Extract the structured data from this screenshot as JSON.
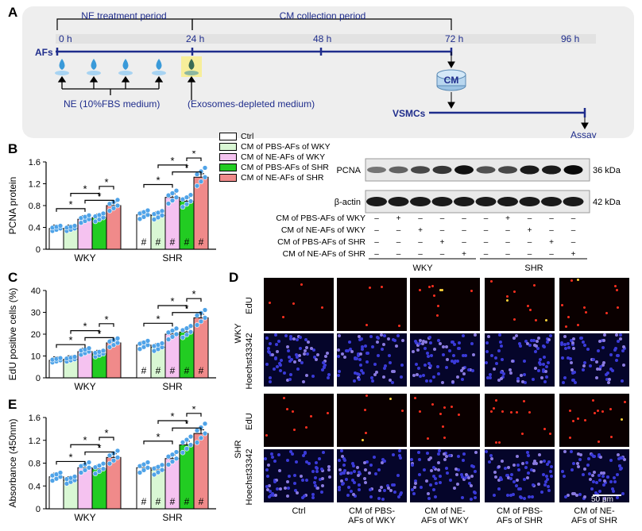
{
  "panel_letters": {
    "A": "A",
    "B": "B",
    "C": "C",
    "D": "D",
    "E": "E"
  },
  "panelA": {
    "period1": "NE treatment period",
    "period2": "CM collection period",
    "times": [
      "0 h",
      "24 h",
      "48 h",
      "72 h",
      "96 h"
    ],
    "afs": "AFs",
    "ne_medium": "NE (10%FBS medium)",
    "exo_medium": "(Exosomes-depleted medium)",
    "cm": "CM",
    "vsmcs": "VSMCs",
    "assay": "Assay",
    "colors": {
      "timeline": "#1f2d8c",
      "box": "#eeeeee"
    }
  },
  "legend": [
    {
      "label": "Ctrl",
      "color": "#ffffff"
    },
    {
      "label": "CM of PBS-AFs of WKY",
      "color": "#d9f7d4"
    },
    {
      "label": "CM of NE-AFs of WKY",
      "color": "#f5c2f0"
    },
    {
      "label": "CM of PBS-AFs of SHR",
      "color": "#22cc22"
    },
    {
      "label": "CM of NE-AFs of SHR",
      "color": "#f08a8a"
    }
  ],
  "significance_marks": {
    "star": "*",
    "hash": "#"
  },
  "chart_data": [
    {
      "type": "bar",
      "panel": "B",
      "ylabel": "PCNA protein",
      "ylim": [
        0,
        1.6
      ],
      "yticks": [
        "0",
        "0.4",
        "0.8",
        "1.2",
        "1.6"
      ],
      "groups": [
        "WKY",
        "SHR"
      ],
      "series": [
        {
          "name": "Ctrl",
          "values": [
            0.38,
            0.63
          ]
        },
        {
          "name": "CM of PBS-AFs of WKY",
          "values": [
            0.38,
            0.62
          ]
        },
        {
          "name": "CM of NE-AFs of WKY",
          "values": [
            0.55,
            0.95
          ]
        },
        {
          "name": "CM of PBS-AFs of SHR",
          "values": [
            0.58,
            0.88
          ]
        },
        {
          "name": "CM of NE-AFs of SHR",
          "values": [
            0.8,
            1.32
          ]
        }
      ]
    },
    {
      "type": "bar",
      "panel": "C",
      "ylabel": "EdU positive cells (%)",
      "ylim": [
        0,
        40
      ],
      "yticks": [
        "0",
        "10",
        "20",
        "30",
        "40"
      ],
      "groups": [
        "WKY",
        "SHR"
      ],
      "series": [
        {
          "name": "Ctrl",
          "values": [
            8,
            15
          ]
        },
        {
          "name": "CM of PBS-AFs of WKY",
          "values": [
            8.5,
            14
          ]
        },
        {
          "name": "CM of NE-AFs of WKY",
          "values": [
            12,
            20
          ]
        },
        {
          "name": "CM of PBS-AFs of SHR",
          "values": [
            11,
            21
          ]
        },
        {
          "name": "CM of NE-AFs of SHR",
          "values": [
            16,
            27.5
          ]
        }
      ]
    },
    {
      "type": "bar",
      "panel": "E",
      "ylabel": "Absorbance (450nm)",
      "ylim": [
        0,
        1.6
      ],
      "yticks": [
        "0",
        "0.4",
        "0.8",
        "1.2",
        "1.6"
      ],
      "groups": [
        "WKY",
        "SHR"
      ],
      "series": [
        {
          "name": "Ctrl",
          "values": [
            0.56,
            0.72
          ]
        },
        {
          "name": "CM of PBS-AFs of WKY",
          "values": [
            0.5,
            0.68
          ]
        },
        {
          "name": "CM of NE-AFs of WKY",
          "values": [
            0.72,
            0.88
          ]
        },
        {
          "name": "CM of PBS-AFs of SHR",
          "values": [
            0.7,
            1.12
          ]
        },
        {
          "name": "CM of NE-AFs of SHR",
          "values": [
            0.9,
            1.32
          ]
        }
      ]
    }
  ],
  "blot": {
    "bands": [
      "PCNA",
      "β-actin"
    ],
    "kda": [
      "36 kDa",
      "42 kDa"
    ],
    "rows": [
      {
        "label": "CM of PBS-AFs of WKY",
        "marks": [
          "–",
          "+",
          "–",
          "–",
          "–",
          "–",
          "+",
          "–",
          "–",
          "–"
        ]
      },
      {
        "label": "CM of NE-AFs of WKY",
        "marks": [
          "–",
          "–",
          "+",
          "–",
          "–",
          "–",
          "–",
          "+",
          "–",
          "–"
        ]
      },
      {
        "label": "CM of PBS-AFs of SHR",
        "marks": [
          "–",
          "–",
          "–",
          "+",
          "–",
          "–",
          "–",
          "–",
          "+",
          "–"
        ]
      },
      {
        "label": "CM of NE-AFs of SHR",
        "marks": [
          "–",
          "–",
          "–",
          "–",
          "+",
          "–",
          "–",
          "–",
          "–",
          "+"
        ]
      }
    ],
    "groups": [
      "WKY",
      "SHR"
    ],
    "pcna_intensity": [
      0.35,
      0.45,
      0.6,
      0.7,
      0.9,
      0.55,
      0.6,
      0.85,
      0.85,
      0.95
    ]
  },
  "panelD": {
    "strain_labels": [
      "WKY",
      "SHR"
    ],
    "stain_labels": [
      "EdU",
      "Hoechst33342"
    ],
    "columns": [
      "Ctrl",
      "CM of PBS-\nAFs of WKY",
      "CM of NE-\nAFs of WKY",
      "CM of PBS-\nAFs of SHR",
      "CM of NE-\nAFs of SHR"
    ],
    "column_lines": [
      [
        "Ctrl",
        ""
      ],
      [
        "CM of PBS-",
        "AFs of WKY"
      ],
      [
        "CM of NE-",
        "AFs of WKY"
      ],
      [
        "CM of PBS-",
        "AFs of SHR"
      ],
      [
        "CM of NE-",
        "AFs of SHR"
      ]
    ],
    "scale_bar": "50 μm"
  }
}
